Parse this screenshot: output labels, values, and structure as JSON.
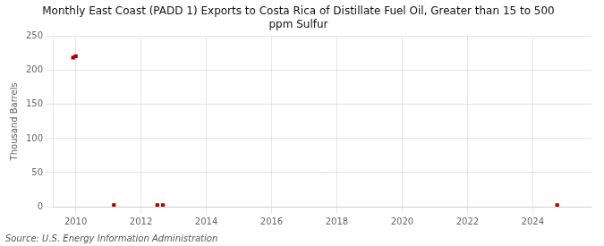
{
  "chart_data": {
    "type": "scatter",
    "title": "Monthly East Coast (PADD 1) Exports to Costa Rica of Distillate Fuel Oil, Greater than 15 to 500\nppm Sulfur",
    "ylabel": "Thousand Barrels",
    "source": "Source: U.S. Energy Information Administration",
    "x": [
      2009.92,
      2010.0,
      2011.17,
      2012.5,
      2012.67,
      2024.75
    ],
    "values": [
      219,
      221,
      2,
      2,
      2,
      2
    ],
    "color": "#aa0000",
    "marker": "square",
    "xlim": [
      2009.3,
      2025.8
    ],
    "ylim": [
      0,
      250
    ],
    "xticks": [
      2010,
      2012,
      2014,
      2016,
      2018,
      2020,
      2022,
      2024
    ],
    "yticks": [
      0,
      50,
      100,
      150,
      200,
      250
    ],
    "grid": true
  }
}
